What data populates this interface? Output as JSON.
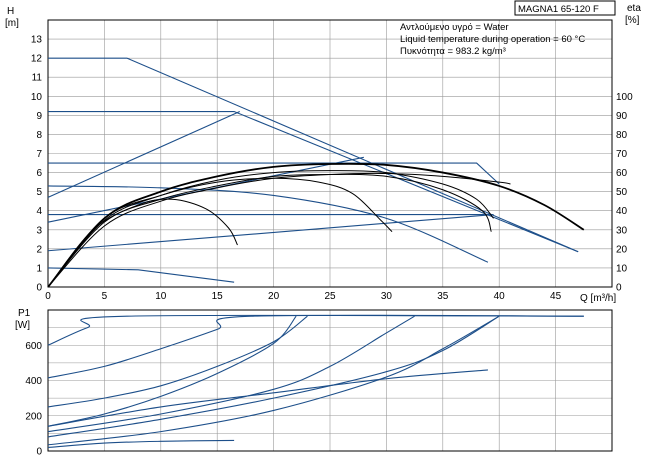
{
  "colors": {
    "pump_curve": "#1d4f8a",
    "efficiency_curve": "#000000",
    "grid": "#999999",
    "axis": "#000000"
  },
  "header": {
    "model": "MAGNA1 65-120 F",
    "info_lines": [
      "Αντλούμενο υγρό = Water",
      "Liquid temperature during operation = 60 °C",
      "Πυκνότητα = 983.2 kg/m³"
    ]
  },
  "chart_data": [
    {
      "type": "line",
      "panel": "head",
      "ylabel": "H",
      "yunit": "[m]",
      "y2label": "eta",
      "y2unit": "[%]",
      "xlabel": "Q [m³/h]",
      "xlim": [
        0,
        50
      ],
      "ylim": [
        0,
        14
      ],
      "y2lim": [
        0,
        140
      ],
      "x_ticks": [
        0,
        5,
        10,
        15,
        20,
        25,
        30,
        35,
        40,
        45
      ],
      "y_ticks": [
        0,
        1,
        2,
        3,
        4,
        5,
        6,
        7,
        8,
        9,
        10,
        11,
        12,
        13
      ],
      "y2_ticks": [
        0,
        10,
        20,
        30,
        40,
        50,
        60,
        70,
        80,
        90,
        100
      ],
      "grid": true,
      "series": [
        {
          "kind": "pump",
          "points": [
            [
              0,
              12
            ],
            [
              7,
              12
            ],
            [
              47,
              1.85
            ]
          ]
        },
        {
          "kind": "pump",
          "points": [
            [
              0,
              9.2
            ],
            [
              16.5,
              9.2
            ],
            [
              47,
              1.85
            ]
          ]
        },
        {
          "kind": "pump",
          "points": [
            [
              0,
              6.5
            ],
            [
              38,
              6.5
            ],
            [
              40,
              5.4
            ]
          ]
        },
        {
          "kind": "pump",
          "points": [
            [
              0,
              5.3
            ],
            [
              10,
              5.2
            ],
            [
              20,
              4.8
            ],
            [
              30,
              3.6
            ],
            [
              39,
              1.3
            ]
          ]
        },
        {
          "kind": "pump",
          "points": [
            [
              0,
              3.8
            ],
            [
              39.5,
              3.8
            ]
          ]
        },
        {
          "kind": "pump",
          "points": [
            [
              0,
              1.0
            ],
            [
              8,
              0.9
            ],
            [
              16.5,
              0.25
            ]
          ]
        },
        {
          "kind": "system",
          "points": [
            [
              0,
              4.7
            ],
            [
              17,
              9.2
            ]
          ]
        },
        {
          "kind": "system",
          "points": [
            [
              0,
              3.4
            ],
            [
              28,
              6.8
            ]
          ]
        },
        {
          "kind": "system",
          "points": [
            [
              0,
              1.9
            ],
            [
              39.5,
              3.8
            ]
          ]
        },
        {
          "kind": "efficiency",
          "points": [
            [
              0,
              0
            ],
            [
              5,
              3.6
            ],
            [
              10,
              5.0
            ],
            [
              15,
              5.8
            ],
            [
              20,
              6.3
            ],
            [
              25,
              6.45
            ],
            [
              30,
              6.4
            ],
            [
              35,
              6.0
            ],
            [
              40,
              5.3
            ],
            [
              44,
              4.3
            ],
            [
              47.5,
              3.0
            ]
          ]
        },
        {
          "kind": "efficiency",
          "points": [
            [
              0,
              0
            ],
            [
              5,
              3.5
            ],
            [
              10,
              4.8
            ],
            [
              15,
              5.6
            ],
            [
              20,
              6.0
            ],
            [
              25,
              6.1
            ],
            [
              30,
              6.0
            ],
            [
              35,
              5.4
            ],
            [
              38,
              4.6
            ],
            [
              39.5,
              3.6
            ]
          ]
        },
        {
          "kind": "efficiency",
          "points": [
            [
              0,
              0
            ],
            [
              5,
              3.4
            ],
            [
              10,
              4.6
            ],
            [
              15,
              5.3
            ],
            [
              20,
              5.8
            ],
            [
              25,
              5.9
            ],
            [
              30,
              5.8
            ],
            [
              35,
              5.1
            ],
            [
              38.5,
              4.0
            ],
            [
              39.3,
              2.9
            ]
          ]
        },
        {
          "kind": "efficiency",
          "points": [
            [
              0,
              0
            ],
            [
              5,
              3.6
            ],
            [
              10,
              4.8
            ],
            [
              15,
              5.5
            ],
            [
              20,
              5.7
            ],
            [
              24,
              5.5
            ],
            [
              27,
              4.9
            ],
            [
              29.5,
              3.5
            ],
            [
              30.5,
              2.9
            ]
          ]
        },
        {
          "kind": "efficiency",
          "points": [
            [
              0,
              0
            ],
            [
              4,
              3.0
            ],
            [
              8,
              4.3
            ],
            [
              11,
              4.6
            ],
            [
              14,
              4.1
            ],
            [
              16,
              3.1
            ],
            [
              16.8,
              2.2
            ]
          ]
        },
        {
          "kind": "efficiency",
          "points": [
            [
              0,
              0
            ],
            [
              5,
              3.2
            ],
            [
              10,
              4.5
            ],
            [
              15,
              5.2
            ],
            [
              20,
              5.7
            ],
            [
              25,
              5.9
            ],
            [
              30,
              5.95
            ],
            [
              35,
              5.8
            ],
            [
              40,
              5.5
            ],
            [
              41,
              5.4
            ]
          ]
        }
      ]
    },
    {
      "type": "line",
      "panel": "power",
      "ylabel": "P1",
      "yunit": "[W]",
      "xlim": [
        0,
        50
      ],
      "ylim": [
        0,
        800
      ],
      "y_ticks": [
        0,
        200,
        400,
        600
      ],
      "grid": true,
      "series": [
        {
          "kind": "power",
          "points": [
            [
              0,
              600
            ],
            [
              3.5,
              700
            ],
            [
              7,
              765
            ],
            [
              47.5,
              765
            ]
          ]
        },
        {
          "kind": "power",
          "points": [
            [
              0,
              415
            ],
            [
              5,
              480
            ],
            [
              10,
              580
            ],
            [
              15,
              690
            ],
            [
              18,
              765
            ],
            [
              47.5,
              765
            ]
          ]
        },
        {
          "kind": "power",
          "points": [
            [
              0,
              250
            ],
            [
              5,
              300
            ],
            [
              10,
              370
            ],
            [
              15,
              480
            ],
            [
              20,
              620
            ],
            [
              23,
              765
            ]
          ]
        },
        {
          "kind": "power",
          "points": [
            [
              0,
              140
            ],
            [
              5,
              210
            ],
            [
              10,
              310
            ],
            [
              15,
              440
            ],
            [
              20,
              610
            ],
            [
              22,
              765
            ]
          ]
        },
        {
          "kind": "power",
          "points": [
            [
              0,
              110
            ],
            [
              10,
              210
            ],
            [
              20,
              350
            ],
            [
              25,
              480
            ],
            [
              30,
              670
            ],
            [
              32.5,
              765
            ]
          ]
        },
        {
          "kind": "power",
          "points": [
            [
              0,
              80
            ],
            [
              10,
              180
            ],
            [
              20,
              300
            ],
            [
              30,
              450
            ],
            [
              35,
              570
            ],
            [
              40,
              765
            ]
          ]
        },
        {
          "kind": "power",
          "points": [
            [
              0,
              35
            ],
            [
              10,
              110
            ],
            [
              20,
              230
            ],
            [
              30,
              420
            ],
            [
              35,
              580
            ],
            [
              40,
              765
            ]
          ]
        },
        {
          "kind": "power",
          "points": [
            [
              0,
              140
            ],
            [
              10,
              250
            ],
            [
              20,
              330
            ],
            [
              30,
              410
            ],
            [
              39,
              460
            ]
          ]
        },
        {
          "kind": "power",
          "points": [
            [
              0,
              20
            ],
            [
              5,
              45
            ],
            [
              10,
              55
            ],
            [
              16.5,
              60
            ]
          ]
        }
      ]
    }
  ]
}
